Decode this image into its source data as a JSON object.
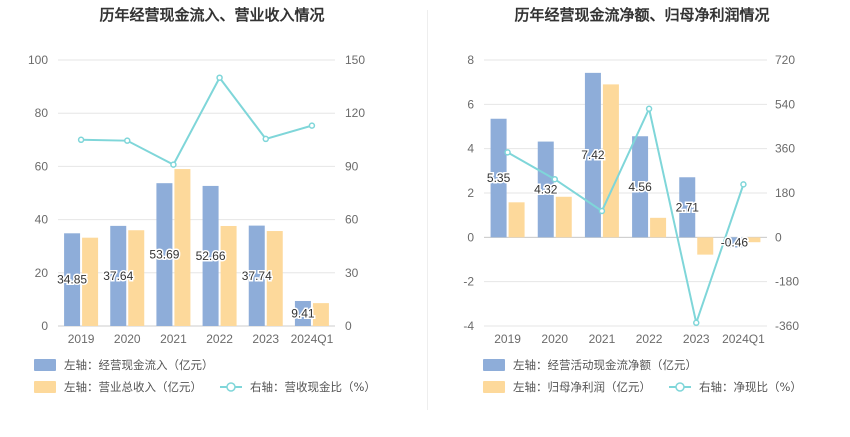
{
  "chart_data": [
    {
      "type": "bar",
      "title": "历年经营现金流入、营业收入情况",
      "categories": [
        "2019",
        "2020",
        "2021",
        "2022",
        "2023",
        "2024Q1"
      ],
      "left_axis": {
        "min": 0,
        "max": 100,
        "ticks": [
          "0",
          "20",
          "40",
          "60",
          "80",
          "100"
        ]
      },
      "right_axis": {
        "min": 0,
        "max": 150,
        "ticks": [
          "0",
          "30",
          "60",
          "90",
          "120",
          "150"
        ]
      },
      "series": [
        {
          "name": "左轴：经营现金流入（亿元）",
          "kind": "bar",
          "axis": "left",
          "color": "#8eadd9",
          "values": [
            34.85,
            37.64,
            53.69,
            52.66,
            37.74,
            9.41
          ],
          "labels": [
            "34.85",
            "37.64",
            "53.69",
            "52.66",
            "37.74",
            "9.41"
          ]
        },
        {
          "name": "左轴：营业总收入（亿元）",
          "kind": "bar",
          "axis": "left",
          "color": "#fdd99b",
          "values": [
            33.2,
            36.0,
            59.0,
            37.6,
            35.7,
            8.6
          ]
        },
        {
          "name": "右轴：营收现金比（%）",
          "kind": "line",
          "axis": "right",
          "color": "#7fd6d9",
          "values": [
            105,
            104.5,
            91,
            140,
            105.5,
            113
          ]
        }
      ],
      "grid": true,
      "legend_position": "bottom-left"
    },
    {
      "type": "bar",
      "title": "历年经营现金流净额、归母净利润情况",
      "categories": [
        "2019",
        "2020",
        "2021",
        "2022",
        "2023",
        "2024Q1"
      ],
      "left_axis": {
        "min": -4,
        "max": 8,
        "ticks": [
          "-4",
          "-2",
          "0",
          "2",
          "4",
          "6",
          "8"
        ]
      },
      "right_axis": {
        "min": -360,
        "max": 720,
        "ticks": [
          "-360",
          "-180",
          "0",
          "180",
          "360",
          "540",
          "720"
        ]
      },
      "series": [
        {
          "name": "左轴：经营活动现金流净额（亿元）",
          "kind": "bar",
          "axis": "left",
          "color": "#8eadd9",
          "values": [
            5.35,
            4.32,
            7.42,
            4.56,
            2.71,
            -0.46
          ],
          "labels": [
            "5.35",
            "4.32",
            "7.42",
            "4.56",
            "2.71",
            "-0.46"
          ]
        },
        {
          "name": "左轴：归母净利润（亿元）",
          "kind": "bar",
          "axis": "left",
          "color": "#fdd99b",
          "values": [
            1.58,
            1.83,
            6.9,
            0.88,
            -0.78,
            -0.22
          ]
        },
        {
          "name": "右轴：净现比（%）",
          "kind": "line",
          "axis": "right",
          "color": "#7fd6d9",
          "values": [
            345,
            236,
            107,
            522,
            -347,
            215
          ]
        }
      ],
      "grid": true,
      "legend_position": "bottom-left"
    }
  ]
}
